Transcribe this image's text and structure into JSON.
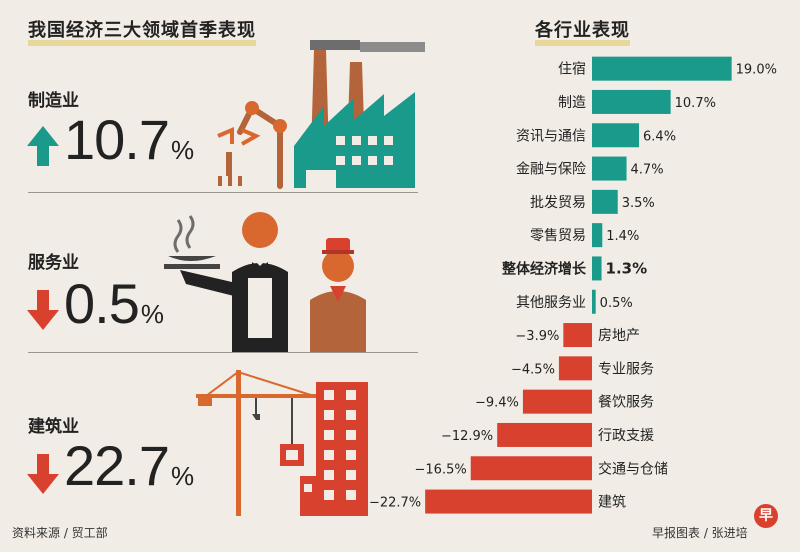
{
  "left": {
    "title": "我国经济三大领域首季表现",
    "sectors": [
      {
        "label": "制造业",
        "value": "10.7",
        "unit": "%",
        "direction": "up",
        "color": "#1a9a8a"
      },
      {
        "label": "服务业",
        "value": "0.5",
        "unit": "%",
        "direction": "down",
        "color": "#d9412f"
      },
      {
        "label": "建筑业",
        "value": "22.7",
        "unit": "%",
        "direction": "down",
        "color": "#d9412f"
      }
    ]
  },
  "chart_data": {
    "type": "bar",
    "title": "各行业表现",
    "categories": [
      "住宿",
      "制造",
      "资讯与通信",
      "金融与保险",
      "批发贸易",
      "零售贸易",
      "整体经济增长",
      "其他服务业",
      "房地产",
      "专业服务",
      "餐饮服务",
      "行政支援",
      "交通与仓储",
      "建筑"
    ],
    "values": [
      19.0,
      10.7,
      6.4,
      4.7,
      3.5,
      1.4,
      1.3,
      0.5,
      -3.9,
      -4.5,
      -9.4,
      -12.9,
      -16.5,
      -22.7
    ],
    "value_labels": [
      "19.0%",
      "10.7%",
      "6.4%",
      "4.7%",
      "3.5%",
      "1.4%",
      "1.3%",
      "0.5%",
      "−3.9%",
      "−4.5%",
      "−9.4%",
      "−12.9%",
      "−16.5%",
      "−22.7%"
    ],
    "highlight": "整体经济增长",
    "positive_color": "#1a9a8a",
    "negative_color": "#d9412f",
    "grid": false,
    "xlabel": "",
    "ylabel": ""
  },
  "footer": {
    "source": "资料来源 / 贸工部",
    "credit": "早报图表 / 张进培"
  },
  "logo_text": "早"
}
